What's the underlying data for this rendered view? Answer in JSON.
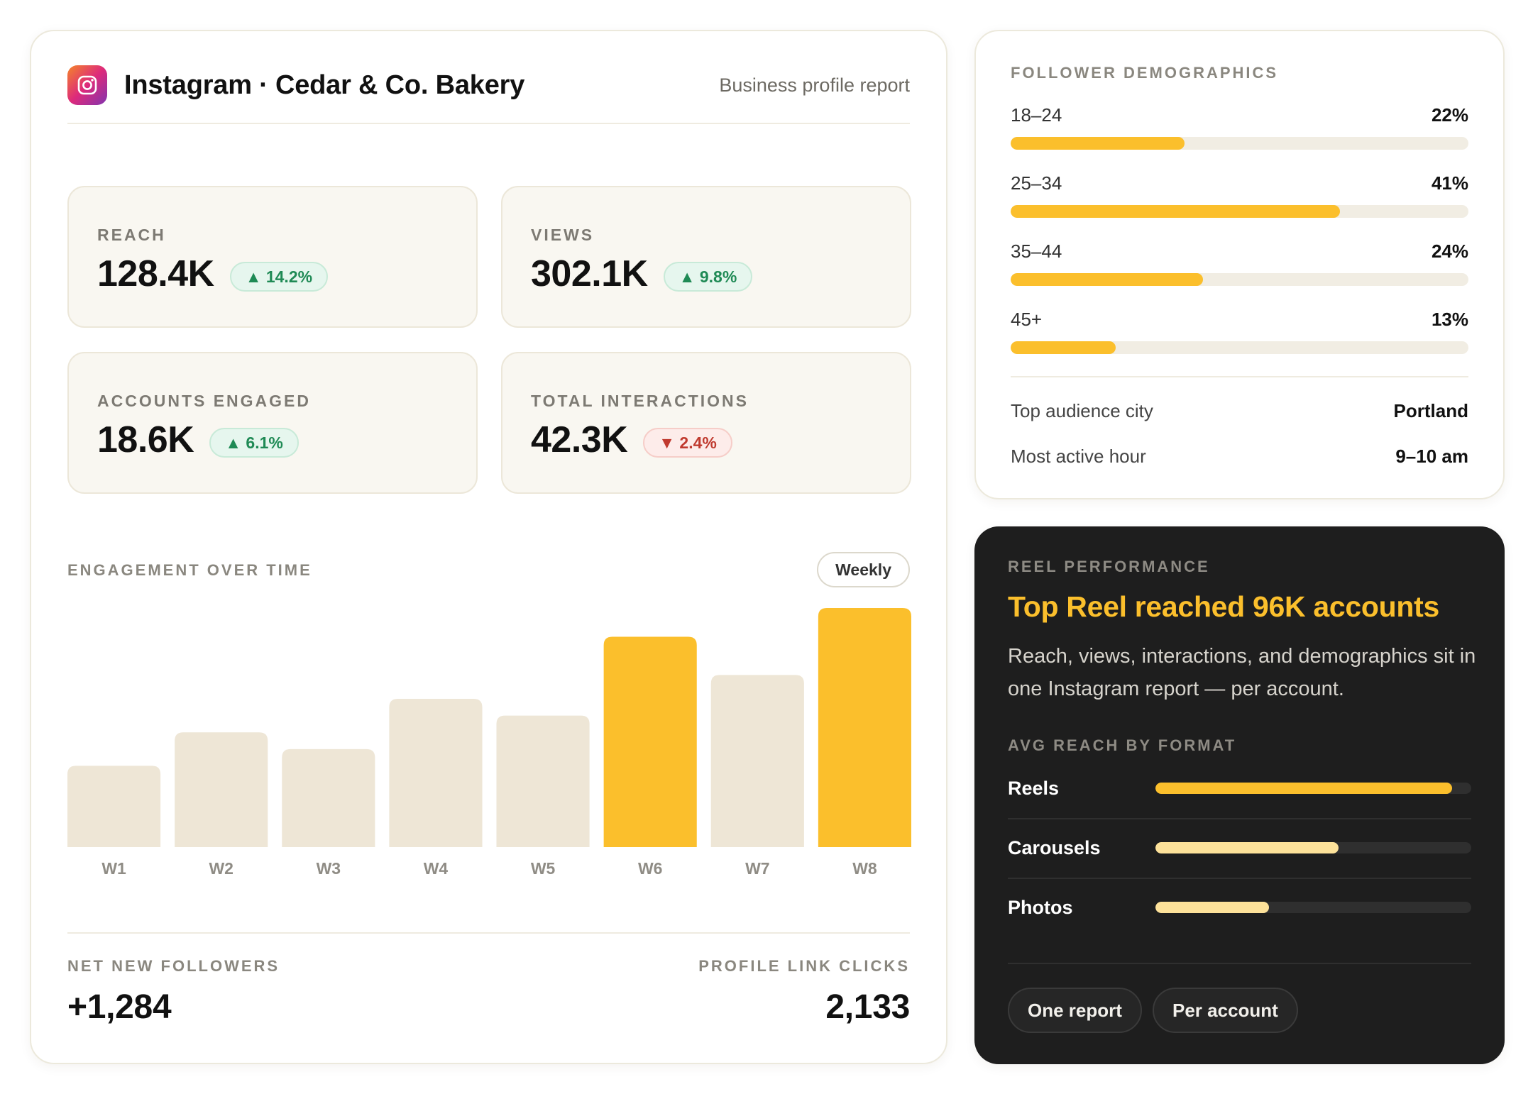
{
  "header": {
    "title": "Instagram · Cedar & Co. Bakery",
    "subtitle": "Business profile report",
    "logo_icon": "instagram-icon"
  },
  "kpis": [
    {
      "label": "REACH",
      "value": "128.4K",
      "delta": "▲ 14.2%",
      "direction": "up"
    },
    {
      "label": "VIEWS",
      "value": "302.1K",
      "delta": "▲ 9.8%",
      "direction": "up"
    },
    {
      "label": "ACCOUNTS ENGAGED",
      "value": "18.6K",
      "delta": "▲ 6.1%",
      "direction": "up"
    },
    {
      "label": "TOTAL INTERACTIONS",
      "value": "42.3K",
      "delta": "▼ 2.4%",
      "direction": "down"
    }
  ],
  "engagement": {
    "label": "ENGAGEMENT OVER TIME",
    "period_pill": "Weekly"
  },
  "chart_data": {
    "type": "bar",
    "title": "",
    "xlabel": "",
    "ylabel": "",
    "categories": [
      "W1",
      "W2",
      "W3",
      "W4",
      "W5",
      "W6",
      "W7",
      "W8"
    ],
    "values": [
      34,
      48,
      41,
      62,
      55,
      88,
      72,
      100
    ],
    "highlighted": [
      "W6",
      "W8"
    ],
    "ylim": [
      0,
      100
    ],
    "grid": false,
    "colors": {
      "default": "#eee6d6",
      "highlight": "#fbbf2c"
    }
  },
  "footer": {
    "left_label": "NET NEW FOLLOWERS",
    "left_value": "+1,284",
    "right_label": "PROFILE LINK CLICKS",
    "right_value": "2,133"
  },
  "demographics": {
    "label": "FOLLOWER DEMOGRAPHICS",
    "rows": [
      {
        "label": "18–24",
        "pct_text": "22%",
        "pct": 0.38
      },
      {
        "label": "25–34",
        "pct_text": "41%",
        "pct": 0.72
      },
      {
        "label": "35–44",
        "pct_text": "24%",
        "pct": 0.42
      },
      {
        "label": "45+",
        "pct_text": "13%",
        "pct": 0.23
      }
    ],
    "stats": [
      {
        "key": "Top audience city",
        "value": "Portland"
      },
      {
        "key": "Most active hour",
        "value": "9–10 am"
      }
    ]
  },
  "reel": {
    "label": "REEL PERFORMANCE",
    "headline": "Top Reel reached 96K accounts",
    "body": "Reach, views, interactions, and demographics sit in one Instagram report — per account.",
    "format_label": "AVG REACH BY FORMAT",
    "formats": [
      {
        "name": "Reels",
        "level": 0.94,
        "color": "#fbbf2c"
      },
      {
        "name": "Carousels",
        "level": 0.58,
        "color": "#fde29a"
      },
      {
        "name": "Photos",
        "level": 0.36,
        "color": "#fde29a"
      }
    ],
    "pills": [
      "One report",
      "Per account"
    ]
  },
  "colors": {
    "accent": "#fbbf2c",
    "up": "#1f8a55",
    "down": "#c03a2f",
    "dark_card": "#1e1e1e"
  }
}
